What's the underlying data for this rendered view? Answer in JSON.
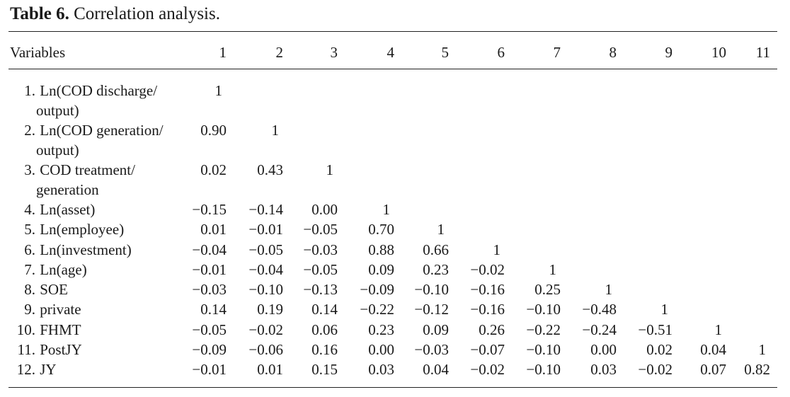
{
  "caption": {
    "label": "Table 6.",
    "text": "Correlation analysis."
  },
  "table": {
    "header_variable": "Variables",
    "columns": [
      "1",
      "2",
      "3",
      "4",
      "5",
      "6",
      "7",
      "8",
      "9",
      "10",
      "11"
    ],
    "rows": [
      {
        "num": "1.",
        "label": "Ln(COD discharge/",
        "label2": "output)",
        "values": [
          "1"
        ]
      },
      {
        "num": "2.",
        "label": "Ln(COD generation/",
        "label2": "output)",
        "values": [
          "0.90",
          "1"
        ]
      },
      {
        "num": "3.",
        "label": "COD treatment/",
        "label2": "generation",
        "values": [
          "0.02",
          "0.43",
          "1"
        ]
      },
      {
        "num": "4.",
        "label": "Ln(asset)",
        "values": [
          "−0.15",
          "−0.14",
          "0.00",
          "1"
        ]
      },
      {
        "num": "5.",
        "label": "Ln(employee)",
        "values": [
          "0.01",
          "−0.01",
          "−0.05",
          "0.70",
          "1"
        ]
      },
      {
        "num": "6.",
        "label": "Ln(investment)",
        "values": [
          "−0.04",
          "−0.05",
          "−0.03",
          "0.88",
          "0.66",
          "1"
        ]
      },
      {
        "num": "7.",
        "label": "Ln(age)",
        "values": [
          "−0.01",
          "−0.04",
          "−0.05",
          "0.09",
          "0.23",
          "−0.02",
          "1"
        ]
      },
      {
        "num": "8.",
        "label": "SOE",
        "values": [
          "−0.03",
          "−0.10",
          "−0.13",
          "−0.09",
          "−0.10",
          "−0.16",
          "0.25",
          "1"
        ]
      },
      {
        "num": "9.",
        "label": "private",
        "values": [
          "0.14",
          "0.19",
          "0.14",
          "−0.22",
          "−0.12",
          "−0.16",
          "−0.10",
          "−0.48",
          "1"
        ]
      },
      {
        "num": "10.",
        "label": "FHMT",
        "values": [
          "−0.05",
          "−0.02",
          "0.06",
          "0.23",
          "0.09",
          "0.26",
          "−0.22",
          "−0.24",
          "−0.51",
          "1"
        ]
      },
      {
        "num": "11.",
        "label": "PostJY",
        "values": [
          "−0.09",
          "−0.06",
          "0.16",
          "0.00",
          "−0.03",
          "−0.07",
          "−0.10",
          "0.00",
          "0.02",
          "0.04",
          "1"
        ]
      },
      {
        "num": "12.",
        "label": "JY",
        "values": [
          "−0.01",
          "0.01",
          "0.15",
          "0.03",
          "0.04",
          "−0.02",
          "−0.10",
          "0.03",
          "−0.02",
          "0.07",
          "0.82"
        ]
      }
    ]
  }
}
